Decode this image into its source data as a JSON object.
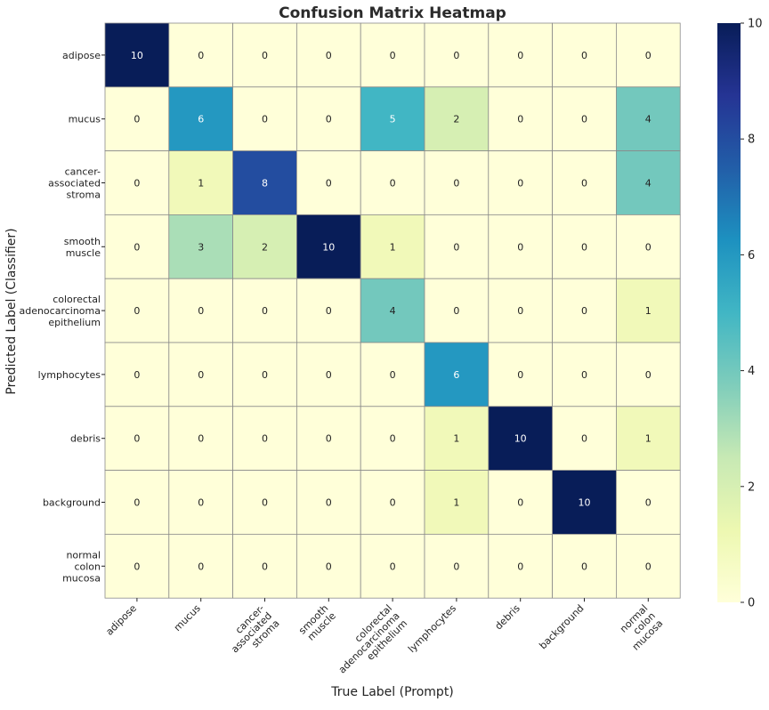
{
  "chart_data": {
    "type": "heatmap",
    "title": "Confusion Matrix Heatmap",
    "xlabel": "True Label (Prompt)",
    "ylabel": "Predicted Label (Classifier)",
    "x_categories": [
      "adipose",
      "mucus",
      "cancer-\nassociated\nstroma",
      "smooth\nmuscle",
      "colorectal\nadenocarcinoma\nepithelium",
      "lymphocytes",
      "debris",
      "background",
      "normal\ncolon\nmucosa"
    ],
    "y_categories": [
      "adipose",
      "mucus",
      "cancer-\nassociated\nstroma",
      "smooth\nmuscle",
      "colorectal\nadenocarcinoma\nepithelium",
      "lymphocytes",
      "debris",
      "background",
      "normal\ncolon\nmucosa"
    ],
    "values": [
      [
        10,
        0,
        0,
        0,
        0,
        0,
        0,
        0,
        0
      ],
      [
        0,
        6,
        0,
        0,
        5,
        2,
        0,
        0,
        4
      ],
      [
        0,
        1,
        8,
        0,
        0,
        0,
        0,
        0,
        4
      ],
      [
        0,
        3,
        2,
        10,
        1,
        0,
        0,
        0,
        0
      ],
      [
        0,
        0,
        0,
        0,
        4,
        0,
        0,
        0,
        1
      ],
      [
        0,
        0,
        0,
        0,
        0,
        6,
        0,
        0,
        0
      ],
      [
        0,
        0,
        0,
        0,
        0,
        1,
        10,
        0,
        1
      ],
      [
        0,
        0,
        0,
        0,
        0,
        1,
        0,
        10,
        0
      ],
      [
        0,
        0,
        0,
        0,
        0,
        0,
        0,
        0,
        0
      ]
    ],
    "colormap": "YlGnBu",
    "value_range": [
      0,
      10
    ],
    "colorbar_ticks": [
      0,
      2,
      4,
      6,
      8,
      10
    ],
    "annotated": true,
    "grid": true
  },
  "colors": {
    "cell_border": "#8a8a8a",
    "dark_text": "#222222",
    "light_text": "#ffffff"
  }
}
